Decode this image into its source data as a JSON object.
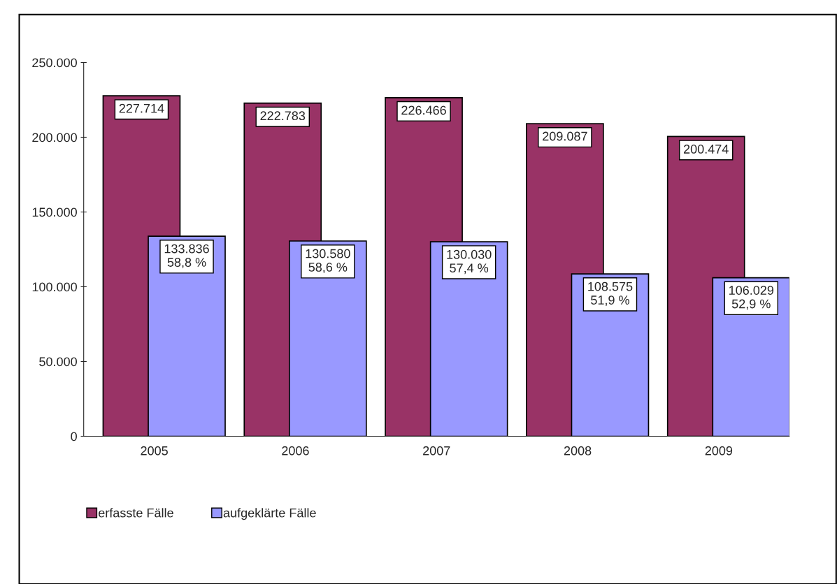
{
  "chart_data": {
    "type": "bar",
    "categories": [
      "2005",
      "2006",
      "2007",
      "2008",
      "2009"
    ],
    "series": [
      {
        "name": "erfasste Fälle",
        "color": "#993366",
        "values": [
          227714,
          222783,
          226466,
          209087,
          200474
        ],
        "value_labels": [
          "227.714",
          "222.783",
          "226.466",
          "209.087",
          "200.474"
        ]
      },
      {
        "name": "aufgeklärte Fälle",
        "color": "#9999ff",
        "values": [
          133836,
          130580,
          130030,
          108575,
          106029
        ],
        "value_labels": [
          "133.836\n58,8 %",
          "130.580\n58,6 %",
          "130.030\n57,4 %",
          "108.575\n51,9 %",
          "106.029\n52,9 %"
        ]
      }
    ],
    "ylim": [
      0,
      250000
    ],
    "yticks": [
      {
        "value": 0,
        "label": "0"
      },
      {
        "value": 50000,
        "label": "50.000"
      },
      {
        "value": 100000,
        "label": "100.000"
      },
      {
        "value": 150000,
        "label": "150.000"
      },
      {
        "value": 200000,
        "label": "200.000"
      },
      {
        "value": 250000,
        "label": "250.000"
      }
    ],
    "grid": false,
    "legend": "bottom left"
  }
}
